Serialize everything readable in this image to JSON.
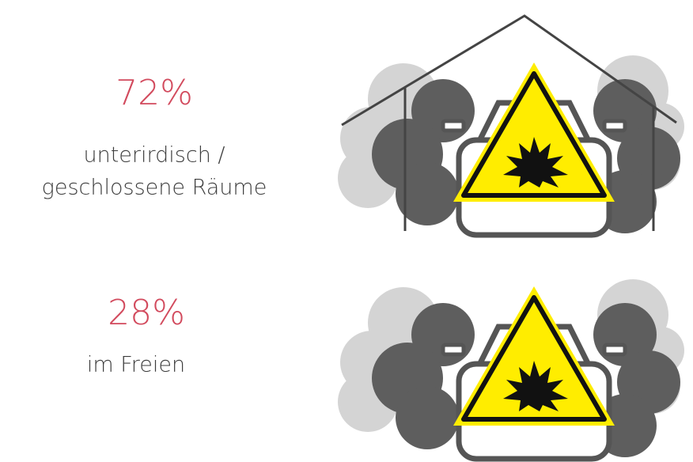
{
  "stats": [
    {
      "percent": "72%",
      "label_lines": [
        "unterirdisch /",
        "geschlossene Räume"
      ]
    },
    {
      "percent": "28%",
      "label_lines": [
        "im Freien"
      ]
    }
  ]
}
